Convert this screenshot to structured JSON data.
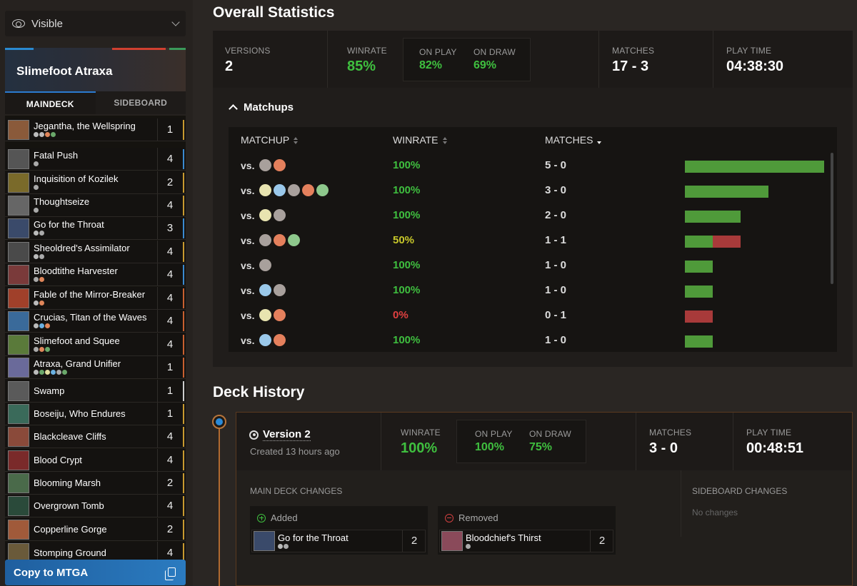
{
  "sidebar": {
    "visibility": "Visible",
    "deck_name": "Slimefoot Atraxa",
    "tabs": [
      "MAINDECK",
      "SIDEBOARD"
    ],
    "cards": [
      {
        "name": "Jegantha, the Wellspring",
        "count": "1",
        "mana": [
          "#bbb",
          "#bbb",
          "#e0865a",
          "#6aa86a"
        ],
        "thumb": "#8a5a3a",
        "edge": "#c89a30"
      },
      {
        "name": "Fatal Push",
        "count": "4",
        "mana": [
          "#aaa"
        ],
        "thumb": "#555",
        "edge": "#3a8ad0"
      },
      {
        "name": "Inquisition of Kozilek",
        "count": "2",
        "mana": [
          "#aaa"
        ],
        "thumb": "#7a6a2a",
        "edge": "#c89a30"
      },
      {
        "name": "Thoughtseize",
        "count": "4",
        "mana": [
          "#aaa"
        ],
        "thumb": "#666",
        "edge": "#c89a30"
      },
      {
        "name": "Go for the Throat",
        "count": "3",
        "mana": [
          "#bbb",
          "#aaa"
        ],
        "thumb": "#3a4a6a",
        "edge": "#3a8ad0"
      },
      {
        "name": "Sheoldred's Assimilator",
        "count": "4",
        "mana": [
          "#bbb",
          "#aaa"
        ],
        "thumb": "#4a4a4a",
        "edge": "#c89a30"
      },
      {
        "name": "Bloodtithe Harvester",
        "count": "4",
        "mana": [
          "#aaa",
          "#e0865a"
        ],
        "thumb": "#7a3a3a",
        "edge": "#3a8ad0"
      },
      {
        "name": "Fable of the Mirror-Breaker",
        "count": "4",
        "mana": [
          "#bbb",
          "#e0865a"
        ],
        "thumb": "#a0402a",
        "edge": "#c86030"
      },
      {
        "name": "Crucias, Titan of the Waves",
        "count": "4",
        "mana": [
          "#bbb",
          "#6ab0e0",
          "#e0865a"
        ],
        "thumb": "#3a6a9a",
        "edge": "#c86030"
      },
      {
        "name": "Slimefoot and Squee",
        "count": "4",
        "mana": [
          "#aaa",
          "#e0865a",
          "#6aa86a"
        ],
        "thumb": "#5a7a3a",
        "edge": "#c86030"
      },
      {
        "name": "Atraxa, Grand Unifier",
        "count": "1",
        "mana": [
          "#bbb",
          "#6aa86a",
          "#e0e0a0",
          "#6ab0e0",
          "#aaa",
          "#6aa86a"
        ],
        "thumb": "#6a6a9a",
        "edge": "#c86030"
      },
      {
        "name": "Swamp",
        "count": "1",
        "mana": [],
        "thumb": "#5a5a5a",
        "edge": "#cccccc"
      },
      {
        "name": "Boseiju, Who Endures",
        "count": "1",
        "mana": [],
        "thumb": "#3a6a5a",
        "edge": "#c89a30"
      },
      {
        "name": "Blackcleave Cliffs",
        "count": "4",
        "mana": [],
        "thumb": "#8a4a3a",
        "edge": "#c89a30"
      },
      {
        "name": "Blood Crypt",
        "count": "4",
        "mana": [],
        "thumb": "#7a2a2a",
        "edge": "#c89a30"
      },
      {
        "name": "Blooming Marsh",
        "count": "2",
        "mana": [],
        "thumb": "#4a6a4a",
        "edge": "#c89a30"
      },
      {
        "name": "Overgrown Tomb",
        "count": "4",
        "mana": [],
        "thumb": "#2a4a3a",
        "edge": "#c89a30"
      },
      {
        "name": "Copperline Gorge",
        "count": "2",
        "mana": [],
        "thumb": "#a05a3a",
        "edge": "#c89a30"
      },
      {
        "name": "Stomping Ground",
        "count": "4",
        "mana": [],
        "thumb": "#6a5a3a",
        "edge": "#c89a30"
      }
    ],
    "copy_label": "Copy to MTGA"
  },
  "overall": {
    "title": "Overall Statistics",
    "versions_label": "VERSIONS",
    "versions": "2",
    "winrate_label": "WINRATE",
    "winrate": "85%",
    "on_play_label": "ON PLAY",
    "on_play": "82%",
    "on_draw_label": "ON DRAW",
    "on_draw": "69%",
    "matches_label": "MATCHES",
    "matches": "17 - 3",
    "playtime_label": "PLAY TIME",
    "playtime": "04:38:30"
  },
  "matchups": {
    "title": "Matchups",
    "headers": [
      "MATCHUP",
      "WINRATE",
      "MATCHES"
    ],
    "vs_label": "vs.",
    "rows": [
      {
        "colors": [
          "B",
          "R"
        ],
        "winrate": "100%",
        "matches": "5 - 0",
        "wins": 5,
        "losses": 0,
        "tone": "green"
      },
      {
        "colors": [
          "W",
          "U",
          "B",
          "R",
          "G"
        ],
        "winrate": "100%",
        "matches": "3 - 0",
        "wins": 3,
        "losses": 0,
        "tone": "green"
      },
      {
        "colors": [
          "W",
          "B"
        ],
        "winrate": "100%",
        "matches": "2 - 0",
        "wins": 2,
        "losses": 0,
        "tone": "green"
      },
      {
        "colors": [
          "B",
          "R",
          "G"
        ],
        "winrate": "50%",
        "matches": "1 - 1",
        "wins": 1,
        "losses": 1,
        "tone": "yellow"
      },
      {
        "colors": [
          "B"
        ],
        "winrate": "100%",
        "matches": "1 - 0",
        "wins": 1,
        "losses": 0,
        "tone": "green"
      },
      {
        "colors": [
          "U",
          "B"
        ],
        "winrate": "100%",
        "matches": "1 - 0",
        "wins": 1,
        "losses": 0,
        "tone": "green"
      },
      {
        "colors": [
          "W",
          "R"
        ],
        "winrate": "0%",
        "matches": "0 - 1",
        "wins": 0,
        "losses": 1,
        "tone": "red"
      },
      {
        "colors": [
          "U",
          "R"
        ],
        "winrate": "100%",
        "matches": "1 - 0",
        "wins": 1,
        "losses": 0,
        "tone": "green"
      }
    ]
  },
  "history": {
    "title": "Deck History",
    "version_name": "Version 2",
    "created": "Created 13 hours ago",
    "winrate_label": "WINRATE",
    "winrate": "100%",
    "on_play_label": "ON PLAY",
    "on_play": "100%",
    "on_draw_label": "ON DRAW",
    "on_draw": "75%",
    "matches_label": "MATCHES",
    "matches": "3 - 0",
    "playtime_label": "PLAY TIME",
    "playtime": "00:48:51",
    "main_changes_label": "MAIN DECK CHANGES",
    "side_changes_label": "SIDEBOARD CHANGES",
    "no_changes": "No changes",
    "added_label": "Added",
    "removed_label": "Removed",
    "added_card": {
      "name": "Go for the Throat",
      "count": "2"
    },
    "removed_card": {
      "name": "Bloodchief's Thirst",
      "count": "2"
    }
  }
}
